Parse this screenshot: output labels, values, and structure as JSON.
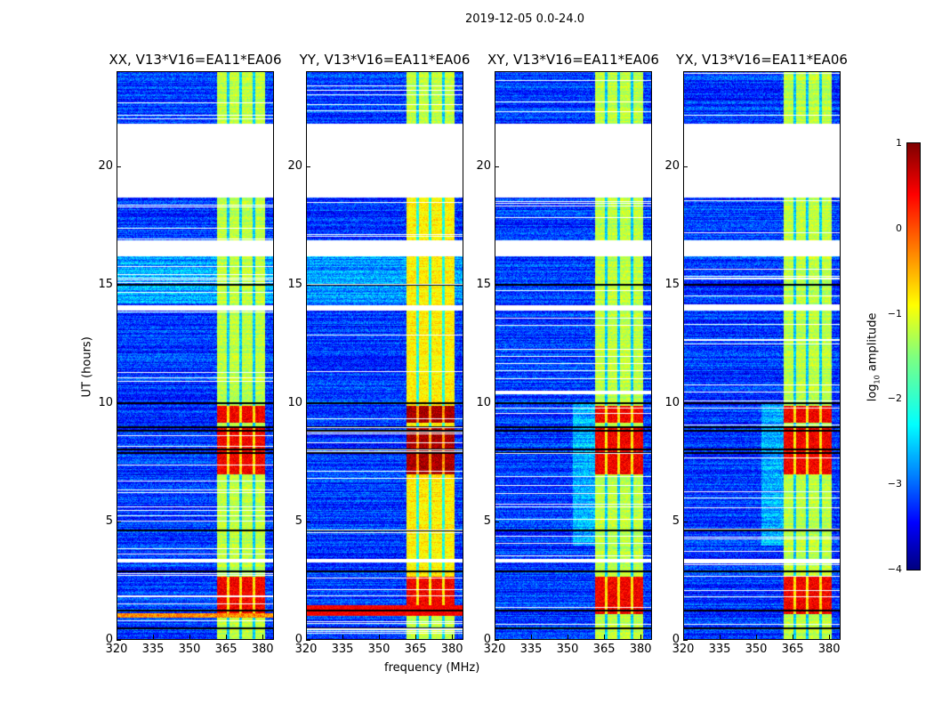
{
  "suptitle": "2019-12-05 0.0-24.0",
  "xlabel": "frequency (MHz)",
  "ylabel": "UT (hours)",
  "colorbar": {
    "label": "log10 amplitude",
    "label_main": "log",
    "label_sub": "10",
    "label_end": " amplitude",
    "ticks": [
      "1",
      "0",
      "−1",
      "−2",
      "−3",
      "−4"
    ],
    "tick_values": [
      1,
      0,
      -1,
      -2,
      -3,
      -4
    ],
    "range": [
      -4,
      1
    ],
    "colormap": "jet"
  },
  "chart_data": [
    {
      "type": "heatmap",
      "title": "XX, V13*V16=EA11*EA06",
      "xlim": [
        320,
        384.7
      ],
      "ylim": [
        0,
        24
      ],
      "xticks": [
        "320",
        "335",
        "350",
        "365",
        "380"
      ],
      "yticks": [
        "0",
        "5",
        "10",
        "15",
        "20"
      ],
      "variant": "xx"
    },
    {
      "type": "heatmap",
      "title": "YY, V13*V16=EA11*EA06",
      "xlim": [
        320,
        384.7
      ],
      "ylim": [
        0,
        24
      ],
      "xticks": [
        "320",
        "335",
        "350",
        "365",
        "380"
      ],
      "yticks": [
        "0",
        "5",
        "10",
        "15",
        "20"
      ],
      "variant": "yy"
    },
    {
      "type": "heatmap",
      "title": "XY, V13*V16=EA11*EA06",
      "xlim": [
        320,
        384.7
      ],
      "ylim": [
        0,
        24
      ],
      "xticks": [
        "320",
        "335",
        "350",
        "365",
        "380"
      ],
      "yticks": [
        "0",
        "5",
        "10",
        "15",
        "20"
      ],
      "variant": "xy"
    },
    {
      "type": "heatmap",
      "title": "YX, V13*V16=EA11*EA06",
      "xlim": [
        320,
        384.7
      ],
      "ylim": [
        0,
        24
      ],
      "xticks": [
        "320",
        "335",
        "350",
        "365",
        "380"
      ],
      "yticks": [
        "0",
        "5",
        "10",
        "15",
        "20"
      ],
      "variant": "yx"
    }
  ],
  "model": {
    "gaps_hours": [
      [
        18.7,
        21.8
      ],
      [
        16.2,
        16.9
      ],
      [
        13.9,
        14.15
      ],
      [
        3.28,
        3.45
      ]
    ],
    "band_mhz": [
      361,
      380.7
    ],
    "band_notches_mhz": [
      365.7,
      370.8,
      376.3
    ],
    "strong_hours": [
      [
        7.0,
        9.0
      ],
      [
        9.2,
        9.9
      ],
      [
        1.1,
        2.7
      ]
    ],
    "flag_lines_hours": [
      0.5,
      1.25,
      2.9,
      4.65,
      7.9,
      8.05,
      8.85,
      9.0,
      10.0,
      15.0
    ]
  }
}
